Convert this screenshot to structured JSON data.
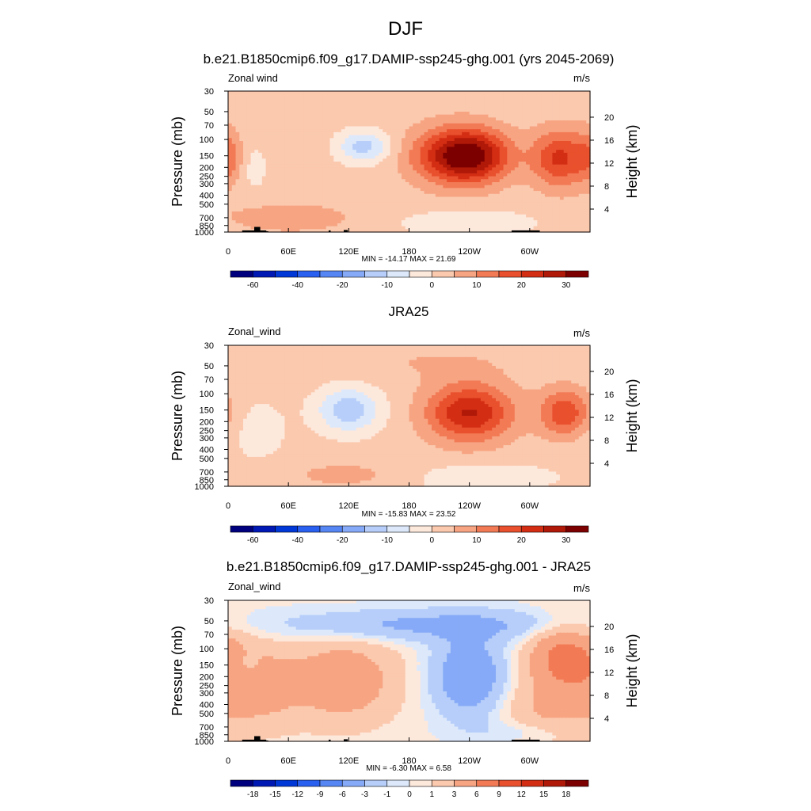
{
  "figure_title": "DJF",
  "colors": {
    "palette": [
      "#00007f",
      "#0018b4",
      "#0038d8",
      "#2a60f0",
      "#5686f4",
      "#86aaf7",
      "#b6cef9",
      "#dde9fb",
      "#fde8dc",
      "#fbc9ae",
      "#f7a482",
      "#f27a55",
      "#e9502d",
      "#d32e14",
      "#b01808",
      "#7d0000"
    ],
    "outline": "#000000",
    "topography": "#000000"
  },
  "chart_data": [
    {
      "type": "heatmap",
      "title": "b.e21.B1850cmip6.f09_g17.DAMIP-ssp245-ghg.001 (yrs 2045-2069)",
      "left_label": "Zonal wind",
      "right_label": "m/s",
      "xlabel": "",
      "ylabel": "Pressure (mb)",
      "y2label": "Height (km)",
      "xticks": [
        "0",
        "60E",
        "120E",
        "180",
        "120W",
        "60W"
      ],
      "xlim": [
        0,
        360
      ],
      "yticks": [
        30,
        50,
        70,
        100,
        150,
        200,
        250,
        300,
        400,
        500,
        700,
        850,
        1000
      ],
      "ylim": [
        1000,
        30
      ],
      "y_scale": "log",
      "y2ticks": [
        4,
        8,
        12,
        16,
        20
      ],
      "minmax_text": "MIN = -14.17  MAX =  21.69",
      "min": -14.17,
      "max": 21.69,
      "contour_levels": [
        -70,
        -60,
        -50,
        -40,
        -30,
        -20,
        -15,
        -10,
        -5,
        0,
        5,
        10,
        15,
        20,
        25,
        30,
        35
      ],
      "colorbar_labels": [
        "-60",
        "-40",
        "-20",
        "-10",
        "0",
        "10",
        "20",
        "30"
      ],
      "topography": true,
      "features": [
        {
          "lon": 245,
          "p": 150,
          "value": 21.69,
          "sigma_lon": 26,
          "sigma_logp": 0.2
        },
        {
          "lon": 220,
          "p": 150,
          "value": 17,
          "sigma_lon": 30,
          "sigma_logp": 0.22
        },
        {
          "lon": 330,
          "p": 160,
          "value": 19,
          "sigma_lon": 20,
          "sigma_logp": 0.22
        },
        {
          "lon": 135,
          "p": 120,
          "value": -14.17,
          "sigma_lon": 18,
          "sigma_logp": 0.12
        },
        {
          "lon": 25,
          "p": 200,
          "value": -4,
          "sigma_lon": 10,
          "sigma_logp": 0.2
        },
        {
          "lon": 60,
          "p": 700,
          "value": 6,
          "sigma_lon": 50,
          "sigma_logp": 0.12
        },
        {
          "lon": 240,
          "p": 800,
          "value": -6,
          "sigma_lon": 50,
          "sigma_logp": 0.1
        },
        {
          "lon": 0,
          "p": 150,
          "value": 8,
          "sigma_lon": 10,
          "sigma_logp": 0.2
        }
      ],
      "background": 2
    },
    {
      "type": "heatmap",
      "title": "JRA25",
      "left_label": "Zonal_wind",
      "right_label": "m/s",
      "xlabel": "",
      "ylabel": "Pressure (mb)",
      "y2label": "Height (km)",
      "xticks": [
        "0",
        "60E",
        "120E",
        "180",
        "120W",
        "60W"
      ],
      "xlim": [
        0,
        360
      ],
      "yticks": [
        30,
        50,
        70,
        100,
        150,
        200,
        250,
        300,
        400,
        500,
        700,
        850,
        1000
      ],
      "ylim": [
        1000,
        30
      ],
      "y_scale": "log",
      "y2ticks": [
        4,
        8,
        12,
        16,
        20
      ],
      "minmax_text": "MIN = -15.83  MAX =  23.52",
      "min": -15.83,
      "max": 23.52,
      "contour_levels": [
        -70,
        -60,
        -50,
        -40,
        -30,
        -20,
        -15,
        -10,
        -5,
        0,
        5,
        10,
        15,
        20,
        25,
        30,
        35
      ],
      "colorbar_labels": [
        "-60",
        "-40",
        "-20",
        "-10",
        "0",
        "10",
        "20",
        "30"
      ],
      "topography": false,
      "features": [
        {
          "lon": 240,
          "p": 160,
          "value": 23.52,
          "sigma_lon": 30,
          "sigma_logp": 0.22
        },
        {
          "lon": 335,
          "p": 160,
          "value": 17,
          "sigma_lon": 18,
          "sigma_logp": 0.18
        },
        {
          "lon": 120,
          "p": 150,
          "value": -15.83,
          "sigma_lon": 22,
          "sigma_logp": 0.17
        },
        {
          "lon": 30,
          "p": 250,
          "value": -4,
          "sigma_lon": 22,
          "sigma_logp": 0.25
        },
        {
          "lon": 120,
          "p": 750,
          "value": 5,
          "sigma_lon": 45,
          "sigma_logp": 0.1
        },
        {
          "lon": 250,
          "p": 800,
          "value": -5,
          "sigma_lon": 60,
          "sigma_logp": 0.12
        },
        {
          "lon": 200,
          "p": 45,
          "value": 3,
          "sigma_lon": 70,
          "sigma_logp": 0.15
        }
      ],
      "background": 2
    },
    {
      "type": "heatmap",
      "title": "b.e21.B1850cmip6.f09_g17.DAMIP-ssp245-ghg.001 - JRA25",
      "left_label": "Zonal_wind",
      "right_label": "m/s",
      "xlabel": "",
      "ylabel": "Pressure (mb)",
      "y2label": "Height (km)",
      "xticks": [
        "0",
        "60E",
        "120E",
        "180",
        "120W",
        "60W"
      ],
      "xlim": [
        0,
        360
      ],
      "yticks": [
        30,
        50,
        70,
        100,
        150,
        200,
        250,
        300,
        400,
        500,
        700,
        850,
        1000
      ],
      "ylim": [
        1000,
        30
      ],
      "y_scale": "log",
      "y2ticks": [
        4,
        8,
        12,
        16,
        20
      ],
      "minmax_text": "MIN =  -6.30  MAX =   6.58",
      "min": -6.3,
      "max": 6.58,
      "contour_levels": [
        -21,
        -18,
        -15,
        -12,
        -9,
        -6,
        -3,
        -1,
        0,
        1,
        3,
        6,
        9,
        12,
        15,
        18,
        21
      ],
      "colorbar_labels": [
        "-18",
        "-15",
        "-12",
        "-9",
        "-6",
        "-3",
        "-1",
        "0",
        "1",
        "3",
        "6",
        "9",
        "12",
        "15",
        "18"
      ],
      "topography": true,
      "features": [
        {
          "lon": 200,
          "p": 55,
          "value": -4,
          "sigma_lon": 110,
          "sigma_logp": 0.12
        },
        {
          "lon": 240,
          "p": 200,
          "value": -6.3,
          "sigma_lon": 25,
          "sigma_logp": 0.3
        },
        {
          "lon": 115,
          "p": 220,
          "value": 5,
          "sigma_lon": 35,
          "sigma_logp": 0.3
        },
        {
          "lon": 30,
          "p": 250,
          "value": 4,
          "sigma_lon": 30,
          "sigma_logp": 0.3
        },
        {
          "lon": 335,
          "p": 120,
          "value": 6.58,
          "sigma_lon": 25,
          "sigma_logp": 0.25
        },
        {
          "lon": 320,
          "p": 500,
          "value": 3,
          "sigma_lon": 35,
          "sigma_logp": 0.3
        },
        {
          "lon": 20,
          "p": 150,
          "value": -2,
          "sigma_lon": 8,
          "sigma_logp": 0.1
        },
        {
          "lon": 300,
          "p": 800,
          "value": -2,
          "sigma_lon": 40,
          "sigma_logp": 0.1
        }
      ],
      "background": 0.3
    }
  ]
}
